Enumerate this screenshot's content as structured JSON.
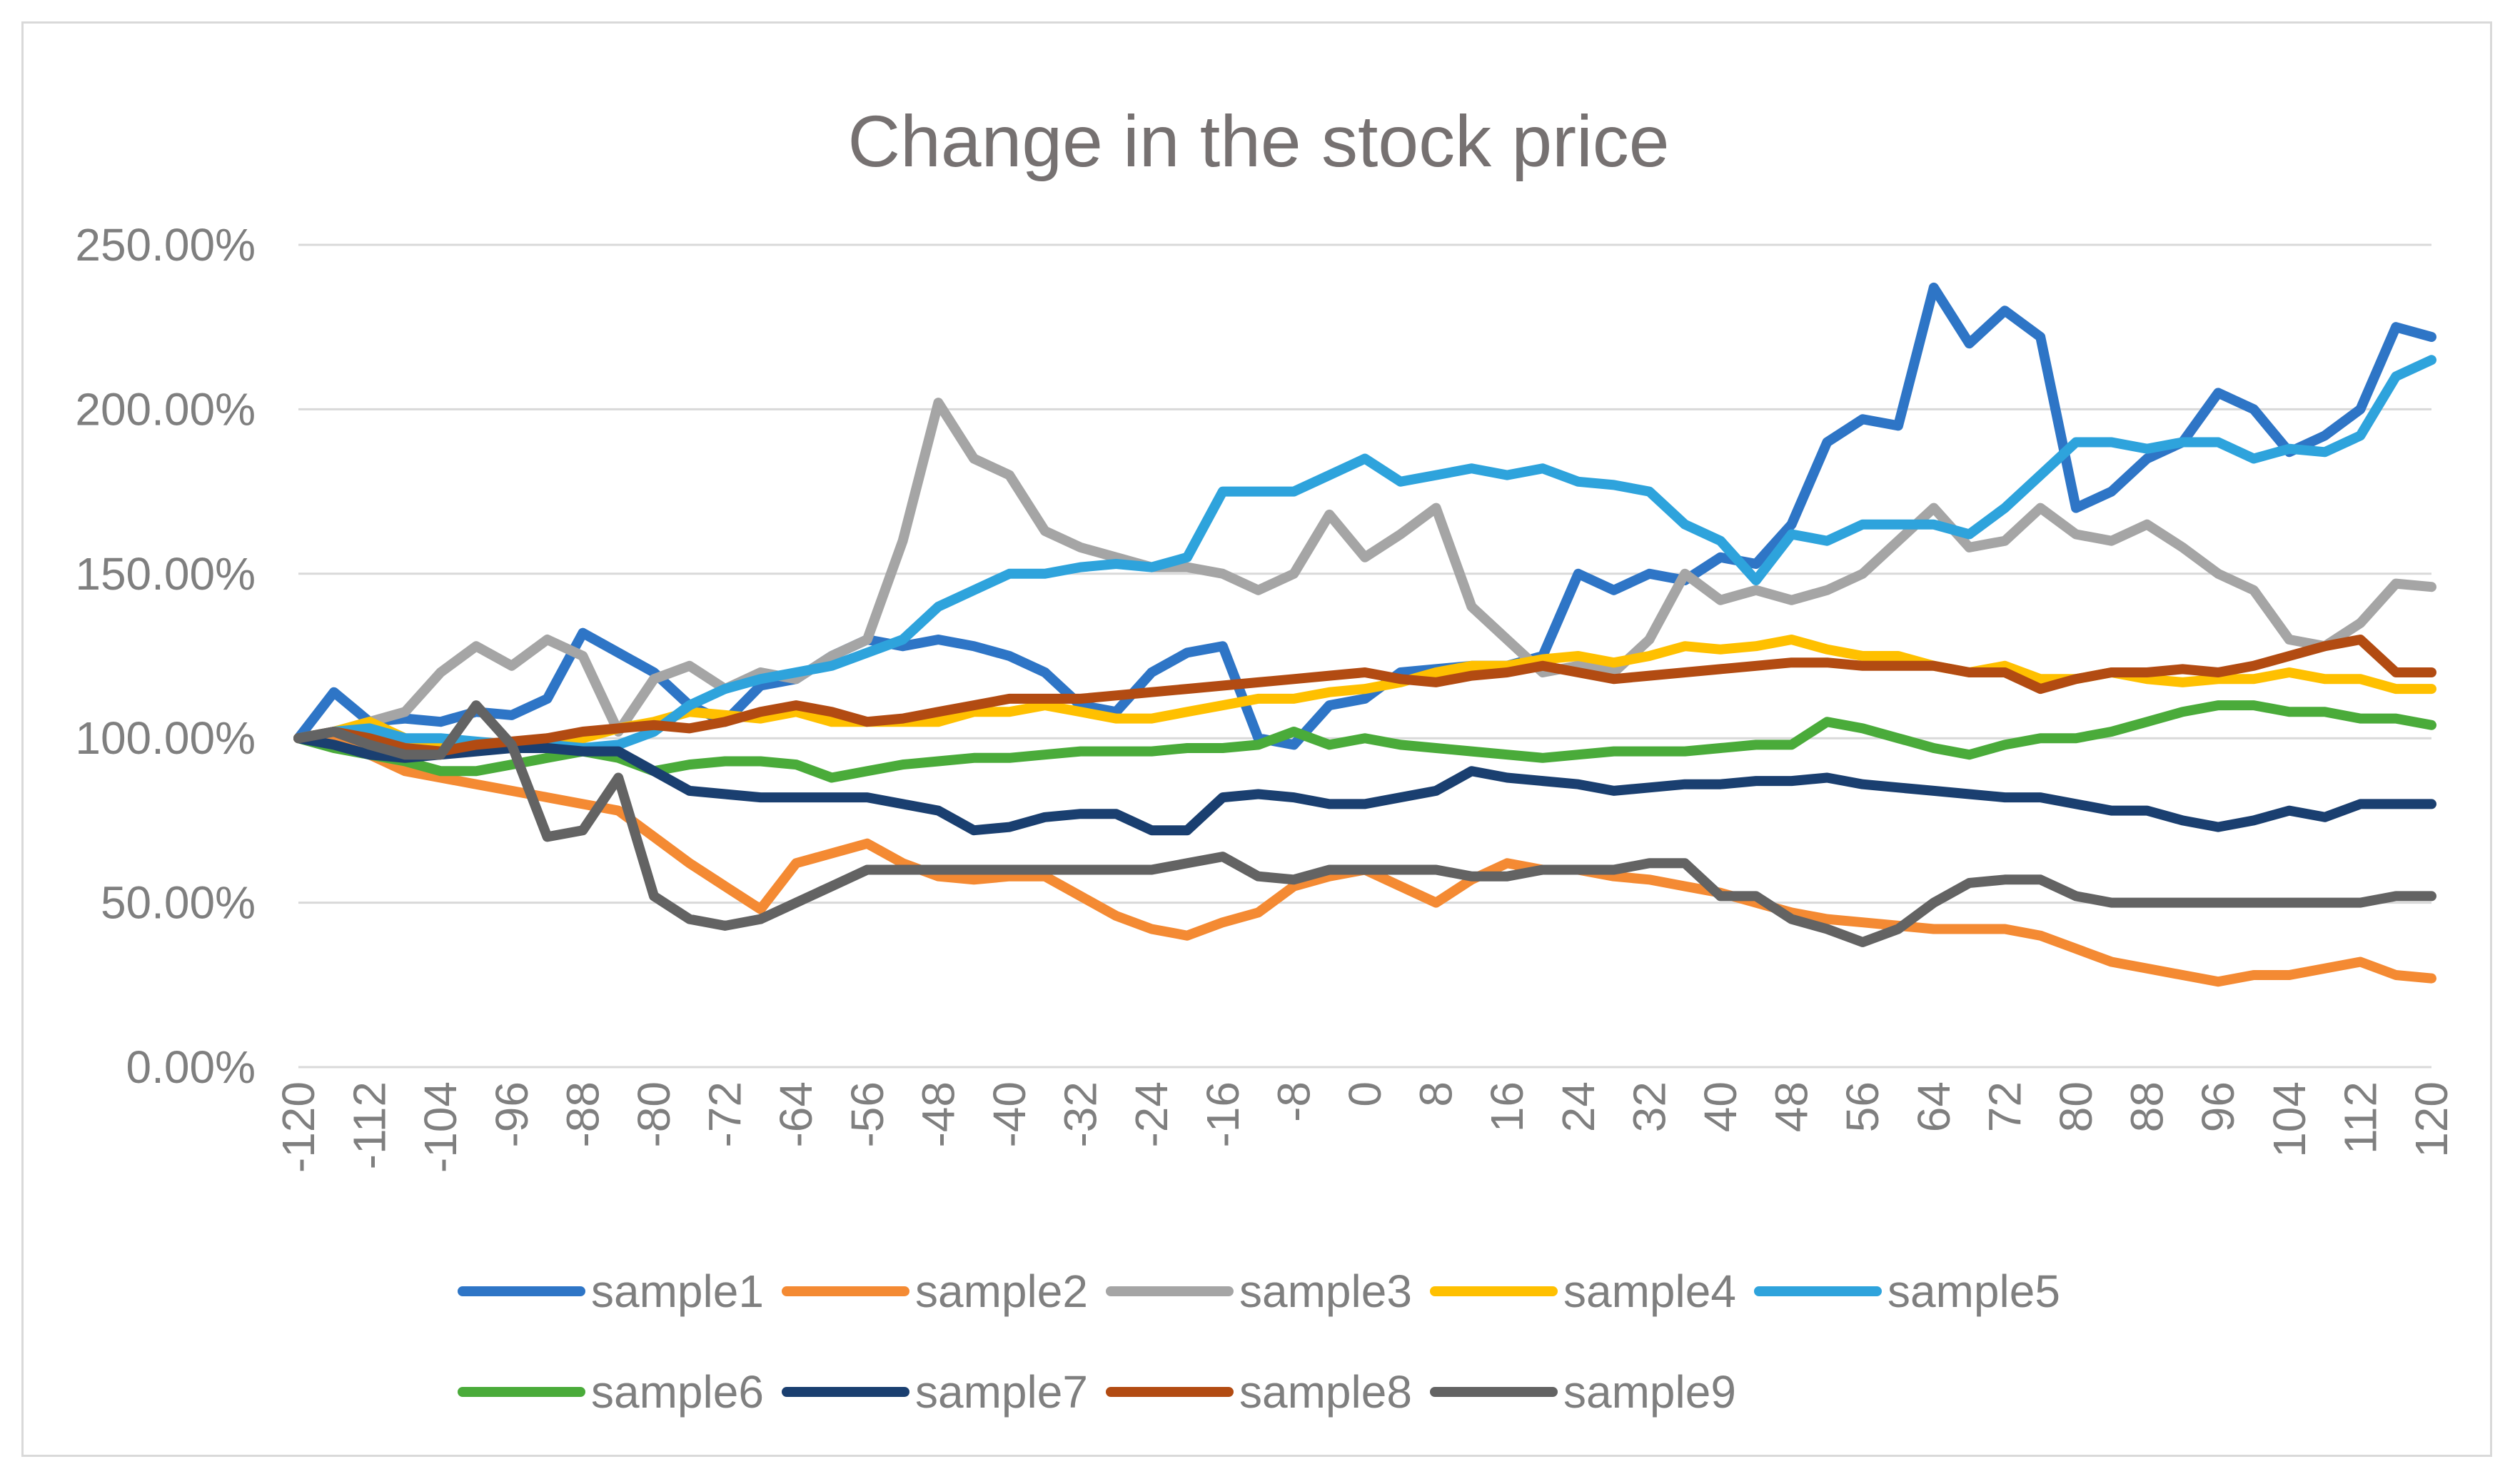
{
  "chart_data": {
    "type": "line",
    "title": "Change in the stock price",
    "xlabel": "",
    "ylabel": "",
    "xlim": [
      -120,
      120
    ],
    "ylim": [
      0,
      2.5
    ],
    "grid": true,
    "legend_position": "bottom",
    "x_ticks": [
      "-120",
      "-112",
      "-104",
      "-96",
      "-88",
      "-80",
      "-72",
      "-64",
      "-56",
      "-48",
      "-40",
      "-32",
      "-24",
      "-16",
      "-8",
      "0",
      "8",
      "16",
      "24",
      "32",
      "40",
      "48",
      "56",
      "64",
      "72",
      "80",
      "88",
      "96",
      "104",
      "112",
      "120"
    ],
    "y_ticks": [
      "0.00%",
      "50.00%",
      "100.00%",
      "150.00%",
      "200.00%",
      "250.00%"
    ],
    "x": [
      -120,
      -116,
      -112,
      -108,
      -104,
      -100,
      -96,
      -92,
      -88,
      -84,
      -80,
      -76,
      -72,
      -68,
      -64,
      -60,
      -56,
      -52,
      -48,
      -44,
      -40,
      -36,
      -32,
      -28,
      -24,
      -20,
      -16,
      -12,
      -8,
      -4,
      0,
      4,
      8,
      12,
      16,
      20,
      24,
      28,
      32,
      36,
      40,
      44,
      48,
      52,
      56,
      60,
      64,
      68,
      72,
      76,
      80,
      84,
      88,
      92,
      96,
      100,
      104,
      108,
      112,
      116,
      120
    ],
    "series": [
      {
        "name": "sample1",
        "color": "#2e75c6",
        "values": [
          1.0,
          1.14,
          1.05,
          1.06,
          1.05,
          1.08,
          1.07,
          1.12,
          1.32,
          1.26,
          1.2,
          1.1,
          1.05,
          1.16,
          1.18,
          1.25,
          1.3,
          1.28,
          1.3,
          1.28,
          1.25,
          1.2,
          1.1,
          1.08,
          1.2,
          1.26,
          1.28,
          1.0,
          0.98,
          1.1,
          1.12,
          1.2,
          1.21,
          1.22,
          1.22,
          1.25,
          1.5,
          1.45,
          1.5,
          1.48,
          1.55,
          1.53,
          1.65,
          1.9,
          1.97,
          1.95,
          2.37,
          2.2,
          2.3,
          2.22,
          1.7,
          1.75,
          1.85,
          1.9,
          2.05,
          2.0,
          1.87,
          1.92,
          2.0,
          2.25,
          2.22
        ]
      },
      {
        "name": "sample2",
        "color": "#f48a33",
        "values": [
          1.0,
          1.0,
          0.95,
          0.9,
          0.88,
          0.86,
          0.84,
          0.82,
          0.8,
          0.78,
          0.7,
          0.62,
          0.55,
          0.48,
          0.62,
          0.65,
          0.68,
          0.62,
          0.58,
          0.57,
          0.58,
          0.58,
          0.52,
          0.46,
          0.42,
          0.4,
          0.44,
          0.47,
          0.55,
          0.58,
          0.6,
          0.55,
          0.5,
          0.57,
          0.62,
          0.6,
          0.6,
          0.58,
          0.57,
          0.55,
          0.53,
          0.5,
          0.47,
          0.45,
          0.44,
          0.43,
          0.42,
          0.42,
          0.42,
          0.4,
          0.36,
          0.32,
          0.3,
          0.28,
          0.26,
          0.28,
          0.28,
          0.3,
          0.32,
          0.28,
          0.27
        ]
      },
      {
        "name": "sample3",
        "color": "#a5a5a5",
        "values": [
          1.0,
          1.02,
          1.05,
          1.08,
          1.2,
          1.28,
          1.22,
          1.3,
          1.25,
          1.02,
          1.18,
          1.22,
          1.15,
          1.2,
          1.18,
          1.25,
          1.3,
          1.6,
          2.02,
          1.85,
          1.8,
          1.63,
          1.58,
          1.55,
          1.52,
          1.52,
          1.5,
          1.45,
          1.5,
          1.68,
          1.55,
          1.62,
          1.7,
          1.4,
          1.3,
          1.2,
          1.22,
          1.2,
          1.3,
          1.5,
          1.42,
          1.45,
          1.42,
          1.45,
          1.5,
          1.6,
          1.7,
          1.58,
          1.6,
          1.7,
          1.62,
          1.6,
          1.65,
          1.58,
          1.5,
          1.45,
          1.3,
          1.28,
          1.35,
          1.47,
          1.46
        ]
      },
      {
        "name": "sample4",
        "color": "#ffc000",
        "values": [
          1.0,
          1.02,
          1.05,
          1.0,
          0.98,
          0.98,
          0.98,
          1.0,
          1.0,
          1.03,
          1.05,
          1.08,
          1.07,
          1.06,
          1.08,
          1.05,
          1.05,
          1.05,
          1.05,
          1.08,
          1.08,
          1.1,
          1.08,
          1.06,
          1.06,
          1.08,
          1.1,
          1.12,
          1.12,
          1.14,
          1.15,
          1.17,
          1.2,
          1.22,
          1.22,
          1.24,
          1.25,
          1.23,
          1.25,
          1.28,
          1.27,
          1.28,
          1.3,
          1.27,
          1.25,
          1.25,
          1.22,
          1.2,
          1.22,
          1.18,
          1.18,
          1.2,
          1.18,
          1.17,
          1.18,
          1.18,
          1.2,
          1.18,
          1.18,
          1.15,
          1.15
        ]
      },
      {
        "name": "sample5",
        "color": "#2ea3dc",
        "values": [
          1.0,
          1.02,
          1.03,
          1.0,
          1.0,
          0.99,
          0.98,
          0.98,
          0.97,
          0.98,
          1.02,
          1.1,
          1.15,
          1.18,
          1.2,
          1.22,
          1.26,
          1.3,
          1.4,
          1.45,
          1.5,
          1.5,
          1.52,
          1.53,
          1.52,
          1.55,
          1.75,
          1.75,
          1.75,
          1.8,
          1.85,
          1.78,
          1.8,
          1.82,
          1.8,
          1.82,
          1.78,
          1.77,
          1.75,
          1.65,
          1.6,
          1.48,
          1.62,
          1.6,
          1.65,
          1.65,
          1.65,
          1.62,
          1.7,
          1.8,
          1.9,
          1.9,
          1.88,
          1.9,
          1.9,
          1.85,
          1.88,
          1.87,
          1.92,
          2.1,
          2.15
        ]
      },
      {
        "name": "sample6",
        "color": "#4aab3a",
        "values": [
          1.0,
          0.97,
          0.95,
          0.93,
          0.9,
          0.9,
          0.92,
          0.94,
          0.96,
          0.94,
          0.9,
          0.92,
          0.93,
          0.93,
          0.92,
          0.88,
          0.9,
          0.92,
          0.93,
          0.94,
          0.94,
          0.95,
          0.96,
          0.96,
          0.96,
          0.97,
          0.97,
          0.98,
          1.02,
          0.98,
          1.0,
          0.98,
          0.97,
          0.96,
          0.95,
          0.94,
          0.95,
          0.96,
          0.96,
          0.96,
          0.97,
          0.98,
          0.98,
          1.05,
          1.03,
          1.0,
          0.97,
          0.95,
          0.98,
          1.0,
          1.0,
          1.02,
          1.05,
          1.08,
          1.1,
          1.1,
          1.08,
          1.08,
          1.06,
          1.06,
          1.04
        ]
      },
      {
        "name": "sample7",
        "color": "#1a3f70",
        "values": [
          1.0,
          0.98,
          0.95,
          0.94,
          0.95,
          0.96,
          0.97,
          0.97,
          0.96,
          0.96,
          0.9,
          0.84,
          0.83,
          0.82,
          0.82,
          0.82,
          0.82,
          0.8,
          0.78,
          0.72,
          0.73,
          0.76,
          0.77,
          0.77,
          0.72,
          0.72,
          0.82,
          0.83,
          0.82,
          0.8,
          0.8,
          0.82,
          0.84,
          0.9,
          0.88,
          0.87,
          0.86,
          0.84,
          0.85,
          0.86,
          0.86,
          0.87,
          0.87,
          0.88,
          0.86,
          0.85,
          0.84,
          0.83,
          0.82,
          0.82,
          0.8,
          0.78,
          0.78,
          0.75,
          0.73,
          0.75,
          0.78,
          0.76,
          0.8,
          0.8,
          0.8
        ]
      },
      {
        "name": "sample8",
        "color": "#b24b12",
        "values": [
          1.0,
          1.02,
          1.0,
          0.97,
          0.96,
          0.98,
          0.99,
          1.0,
          1.02,
          1.03,
          1.04,
          1.03,
          1.05,
          1.08,
          1.1,
          1.08,
          1.05,
          1.06,
          1.08,
          1.1,
          1.12,
          1.12,
          1.12,
          1.13,
          1.14,
          1.15,
          1.16,
          1.17,
          1.18,
          1.19,
          1.2,
          1.18,
          1.17,
          1.19,
          1.2,
          1.22,
          1.2,
          1.18,
          1.19,
          1.2,
          1.21,
          1.22,
          1.23,
          1.23,
          1.22,
          1.22,
          1.22,
          1.2,
          1.2,
          1.15,
          1.18,
          1.2,
          1.2,
          1.21,
          1.2,
          1.22,
          1.25,
          1.28,
          1.3,
          1.2,
          1.2
        ]
      },
      {
        "name": "sample9",
        "color": "#636363",
        "values": [
          1.0,
          1.02,
          0.98,
          0.95,
          0.95,
          1.1,
          0.98,
          0.7,
          0.72,
          0.88,
          0.52,
          0.45,
          0.43,
          0.45,
          0.5,
          0.55,
          0.6,
          0.6,
          0.6,
          0.6,
          0.6,
          0.6,
          0.6,
          0.6,
          0.6,
          0.62,
          0.64,
          0.58,
          0.57,
          0.6,
          0.6,
          0.6,
          0.6,
          0.58,
          0.58,
          0.6,
          0.6,
          0.6,
          0.62,
          0.62,
          0.52,
          0.52,
          0.45,
          0.42,
          0.38,
          0.42,
          0.5,
          0.56,
          0.57,
          0.57,
          0.52,
          0.5,
          0.5,
          0.5,
          0.5,
          0.5,
          0.5,
          0.5,
          0.5,
          0.52,
          0.52
        ]
      }
    ]
  }
}
